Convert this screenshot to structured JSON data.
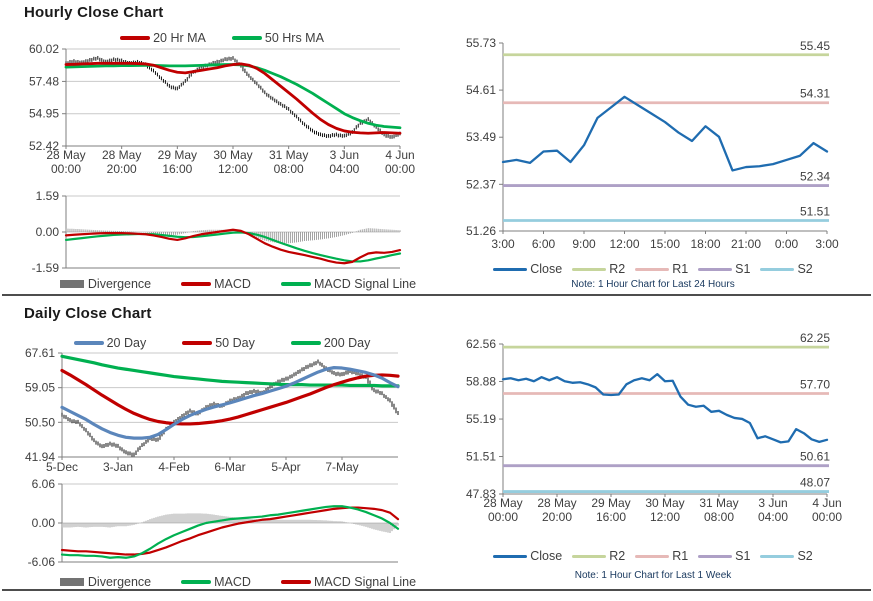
{
  "colors": {
    "candle": "#111111",
    "grid": "#c9c9c9",
    "axis": "#7f7f7f",
    "tick_text": "#3f3f3f",
    "note_text": "#17375d",
    "divergence_bar": "#8c8c8c"
  },
  "chart_data": [
    {
      "type": "candlestick",
      "title": "Hourly Close Chart",
      "ylim": [
        52.42,
        60.02
      ],
      "yticks": [
        "60.02",
        "57.48",
        "54.95",
        "52.42"
      ],
      "xtick_step": 7,
      "xticklabels": [
        [
          "28 May",
          "00:00"
        ],
        [
          "28 May",
          "20:00"
        ],
        [
          "29 May",
          "16:00"
        ],
        [
          "30 May",
          "12:00"
        ],
        [
          "31 May",
          "08:00"
        ],
        [
          "3 Jun",
          "04:00"
        ],
        [
          "4 Jun",
          "00:00"
        ]
      ],
      "close": [
        58.9,
        59.05,
        58.95,
        59.15,
        59.3,
        59.0,
        59.2,
        59.1,
        58.9,
        59.0,
        58.8,
        58.3,
        57.7,
        57.1,
        56.9,
        57.5,
        58.2,
        58.6,
        58.8,
        59.0,
        59.2,
        59.3,
        58.7,
        57.9,
        57.3,
        56.6,
        56.1,
        55.7,
        55.3,
        54.7,
        54.1,
        53.6,
        53.3,
        53.2,
        53.3,
        53.2,
        53.5,
        54.2,
        54.5,
        53.9,
        53.3,
        53.1,
        53.4
      ],
      "series": [
        {
          "name": "20 Hr MA",
          "color": "#c00000",
          "values": [
            58.8,
            58.82,
            58.85,
            58.87,
            58.9,
            58.9,
            58.9,
            58.9,
            58.9,
            58.88,
            58.85,
            58.75,
            58.55,
            58.35,
            58.2,
            58.15,
            58.25,
            58.35,
            58.45,
            58.55,
            58.7,
            58.8,
            58.85,
            58.75,
            58.5,
            58.1,
            57.6,
            57.1,
            56.6,
            56.1,
            55.55,
            55.0,
            54.5,
            54.1,
            53.8,
            53.6,
            53.5,
            53.45,
            53.42,
            53.45,
            53.48,
            53.45,
            53.42
          ]
        },
        {
          "name": "50 Hrs MA",
          "color": "#00b050",
          "values": [
            58.6,
            58.62,
            58.64,
            58.66,
            58.68,
            58.7,
            58.7,
            58.72,
            58.72,
            58.73,
            58.74,
            58.74,
            58.72,
            58.7,
            58.7,
            58.7,
            58.72,
            58.74,
            58.76,
            58.78,
            58.8,
            58.8,
            58.78,
            58.7,
            58.55,
            58.35,
            58.1,
            57.85,
            57.55,
            57.25,
            56.9,
            56.55,
            56.15,
            55.75,
            55.35,
            54.95,
            54.65,
            54.4,
            54.2,
            54.05,
            53.95,
            53.9,
            53.85
          ]
        }
      ]
    },
    {
      "type": "macd",
      "ylim": [
        -1.59,
        1.59
      ],
      "yticks": [
        "1.59",
        "0.00",
        "-1.59"
      ],
      "divergence": {
        "name": "Divergence",
        "color": "#737373",
        "values": [
          0.15,
          0.14,
          0.12,
          0.1,
          0.08,
          0.06,
          0.05,
          0.04,
          0.02,
          0.0,
          -0.02,
          -0.05,
          -0.1,
          -0.14,
          -0.12,
          -0.05,
          0.04,
          0.08,
          0.1,
          0.1,
          0.1,
          0.08,
          0.02,
          -0.1,
          -0.25,
          -0.38,
          -0.45,
          -0.5,
          -0.5,
          -0.46,
          -0.4,
          -0.37,
          -0.33,
          -0.28,
          -0.22,
          -0.14,
          -0.04,
          0.1,
          0.17,
          0.15,
          0.12,
          0.1,
          0.08
        ]
      },
      "series": [
        {
          "name": "MACD",
          "color": "#c00000",
          "values": [
            -0.15,
            -0.12,
            -0.1,
            -0.08,
            -0.06,
            -0.05,
            -0.05,
            -0.05,
            -0.06,
            -0.08,
            -0.1,
            -0.15,
            -0.22,
            -0.3,
            -0.35,
            -0.28,
            -0.18,
            -0.1,
            -0.05,
            0.0,
            0.05,
            0.1,
            0.05,
            -0.1,
            -0.3,
            -0.5,
            -0.65,
            -0.78,
            -0.88,
            -0.95,
            -1.02,
            -1.1,
            -1.18,
            -1.28,
            -1.35,
            -1.38,
            -1.32,
            -1.12,
            -0.95,
            -0.9,
            -0.92,
            -0.88,
            -0.8
          ]
        },
        {
          "name": "MACD Signal Line",
          "color": "#00b050",
          "values": [
            -0.35,
            -0.31,
            -0.27,
            -0.23,
            -0.19,
            -0.16,
            -0.13,
            -0.11,
            -0.1,
            -0.09,
            -0.09,
            -0.1,
            -0.13,
            -0.17,
            -0.21,
            -0.23,
            -0.22,
            -0.19,
            -0.15,
            -0.11,
            -0.07,
            -0.03,
            -0.02,
            -0.05,
            -0.12,
            -0.22,
            -0.35,
            -0.48,
            -0.6,
            -0.72,
            -0.83,
            -0.93,
            -1.02,
            -1.1,
            -1.18,
            -1.25,
            -1.3,
            -1.3,
            -1.25,
            -1.17,
            -1.1,
            -1.02,
            -0.95
          ]
        }
      ]
    },
    {
      "type": "line",
      "note": "Note: 1 Hour Chart for Last 24 Hours",
      "ylim": [
        51.26,
        55.73
      ],
      "yticks": [
        "55.73",
        "54.61",
        "53.49",
        "52.37",
        "51.26"
      ],
      "xtick_step": 3,
      "xticklabels": [
        "3:00",
        "6:00",
        "9:00",
        "12:00",
        "15:00",
        "18:00",
        "21:00",
        "0:00",
        "3:00"
      ],
      "series": [
        {
          "name": "Close",
          "color": "#1f6cb0",
          "values": [
            52.9,
            52.95,
            52.88,
            53.15,
            53.17,
            52.9,
            53.3,
            53.95,
            54.2,
            54.45,
            54.25,
            54.05,
            53.85,
            53.6,
            53.4,
            53.75,
            53.5,
            52.7,
            52.78,
            52.8,
            52.85,
            52.95,
            53.05,
            53.35,
            53.15
          ]
        }
      ],
      "levels": [
        {
          "name": "R2",
          "value": 55.45,
          "label": "55.45",
          "color": "#c6d59c"
        },
        {
          "name": "R1",
          "value": 54.31,
          "label": "54.31",
          "color": "#e6b9b7"
        },
        {
          "name": "S1",
          "value": 52.34,
          "label": "52.34",
          "color": "#aea0c6"
        },
        {
          "name": "S2",
          "value": 51.51,
          "label": "51.51",
          "color": "#95cdde"
        }
      ]
    },
    {
      "type": "candlestick",
      "title": "Daily Close Chart",
      "ylim": [
        41.94,
        67.61
      ],
      "yticks": [
        "67.61",
        "59.05",
        "50.50",
        "41.94"
      ],
      "xtick_step": 7,
      "xticklabels": [
        "5-Dec",
        "3-Jan",
        "4-Feb",
        "6-Mar",
        "5-Apr",
        "7-May"
      ],
      "close": [
        52.3,
        51.0,
        50.5,
        48.5,
        46.0,
        44.5,
        45.2,
        44.6,
        43.0,
        42.5,
        44.8,
        46.5,
        46.2,
        48.8,
        50.5,
        52.0,
        53.3,
        52.6,
        54.2,
        55.0,
        54.5,
        55.8,
        56.4,
        57.6,
        58.2,
        57.7,
        59.2,
        60.5,
        61.2,
        62.2,
        63.5,
        64.5,
        65.4,
        63.8,
        62.6,
        62.3,
        63.1,
        62.5,
        61.6,
        58.4,
        57.6,
        55.8,
        52.8
      ],
      "series": [
        {
          "name": "20 Day",
          "color": "#5b86bb",
          "values": [
            54.2,
            53.2,
            52.2,
            51.2,
            50.0,
            48.9,
            48.0,
            47.3,
            46.8,
            46.6,
            46.6,
            46.8,
            47.5,
            48.7,
            50.0,
            51.2,
            52.2,
            53.0,
            53.7,
            54.3,
            54.8,
            55.3,
            55.9,
            56.5,
            57.1,
            57.6,
            58.2,
            58.8,
            59.4,
            60.2,
            61.1,
            62.0,
            62.9,
            63.6,
            64.0,
            63.9,
            63.6,
            63.2,
            62.8,
            62.2,
            61.4,
            60.3,
            59.3
          ]
        },
        {
          "name": "50 Day",
          "color": "#c00000",
          "values": [
            63.3,
            62.2,
            61.0,
            59.8,
            58.5,
            57.2,
            56.0,
            54.8,
            53.7,
            52.7,
            51.9,
            51.2,
            50.7,
            50.4,
            50.2,
            50.1,
            50.1,
            50.2,
            50.4,
            50.6,
            50.9,
            51.3,
            51.8,
            52.4,
            53.0,
            53.6,
            54.2,
            54.8,
            55.4,
            56.1,
            56.8,
            57.5,
            58.3,
            59.1,
            59.8,
            60.4,
            61.0,
            61.5,
            61.9,
            62.1,
            62.2,
            62.1,
            61.9
          ]
        },
        {
          "name": "200 Day",
          "color": "#00b050",
          "values": [
            66.8,
            66.4,
            66.0,
            65.6,
            65.2,
            64.7,
            64.3,
            63.9,
            63.6,
            63.3,
            63.0,
            62.7,
            62.4,
            62.1,
            61.8,
            61.6,
            61.4,
            61.2,
            61.0,
            60.8,
            60.6,
            60.5,
            60.4,
            60.3,
            60.2,
            60.1,
            60.0,
            59.9,
            59.8,
            59.8,
            59.8,
            59.7,
            59.7,
            59.7,
            59.7,
            59.7,
            59.6,
            59.6,
            59.6,
            59.6,
            59.5,
            59.5,
            59.5
          ]
        }
      ]
    },
    {
      "type": "macd",
      "ylim": [
        -6.06,
        6.06
      ],
      "yticks": [
        "6.06",
        "0.00",
        "-6.06"
      ],
      "divergence": {
        "name": "Divergence",
        "color": "#737373",
        "values": [
          -0.7,
          -0.7,
          -0.6,
          -0.7,
          -0.6,
          -0.6,
          -0.7,
          -0.5,
          -0.5,
          -0.3,
          0.1,
          0.6,
          1.0,
          1.3,
          1.45,
          1.45,
          1.5,
          1.5,
          1.45,
          1.3,
          1.1,
          0.95,
          0.85,
          0.7,
          0.6,
          0.5,
          0.55,
          0.5,
          0.5,
          0.5,
          0.5,
          0.5,
          0.45,
          0.4,
          0.3,
          0.25,
          0.0,
          -0.3,
          -0.6,
          -1.0,
          -1.3,
          -1.55,
          -0.4
        ]
      },
      "series": [
        {
          "name": "MACD",
          "color": "#00b050",
          "values": [
            -4.9,
            -5.0,
            -5.0,
            -5.1,
            -5.1,
            -5.2,
            -5.4,
            -5.3,
            -5.4,
            -5.2,
            -4.7,
            -4.0,
            -3.2,
            -2.5,
            -1.9,
            -1.4,
            -0.9,
            -0.4,
            0.0,
            0.2,
            0.4,
            0.6,
            0.7,
            0.8,
            0.9,
            1.0,
            1.2,
            1.3,
            1.5,
            1.7,
            1.9,
            2.1,
            2.3,
            2.5,
            2.6,
            2.6,
            2.4,
            2.1,
            1.7,
            1.2,
            0.7,
            0.0,
            -0.9
          ]
        },
        {
          "name": "MACD Signal Line",
          "color": "#c00000",
          "values": [
            -4.2,
            -4.3,
            -4.4,
            -4.4,
            -4.5,
            -4.6,
            -4.7,
            -4.8,
            -4.9,
            -4.9,
            -4.8,
            -4.6,
            -4.2,
            -3.8,
            -3.3,
            -2.8,
            -2.4,
            -1.9,
            -1.5,
            -1.1,
            -0.7,
            -0.4,
            -0.1,
            0.1,
            0.3,
            0.5,
            0.6,
            0.8,
            1.0,
            1.2,
            1.4,
            1.6,
            1.8,
            2.0,
            2.2,
            2.3,
            2.4,
            2.4,
            2.3,
            2.2,
            2.0,
            1.6,
            0.6
          ]
        }
      ]
    },
    {
      "type": "line",
      "note": "Note: 1 Hour Chart for Last 1 Week",
      "ylim": [
        47.83,
        62.56
      ],
      "yticks": [
        "62.56",
        "58.88",
        "55.19",
        "51.51",
        "47.83"
      ],
      "xtick_step": 7,
      "xticklabels": [
        [
          "28 May",
          "00:00"
        ],
        [
          "28 May",
          "20:00"
        ],
        [
          "29 May",
          "16:00"
        ],
        [
          "30 May",
          "12:00"
        ],
        [
          "31 May",
          "08:00"
        ],
        [
          "3 Jun",
          "04:00"
        ],
        [
          "4 Jun",
          "00:00"
        ]
      ],
      "series": [
        {
          "name": "Close",
          "color": "#1f6cb0",
          "values": [
            59.1,
            59.2,
            59.0,
            59.15,
            58.9,
            59.3,
            59.0,
            59.3,
            58.9,
            58.75,
            58.8,
            58.6,
            58.3,
            57.6,
            57.55,
            57.6,
            58.6,
            59.0,
            59.2,
            59.0,
            59.6,
            58.9,
            58.95,
            57.4,
            56.6,
            56.4,
            56.5,
            55.9,
            56.0,
            55.6,
            55.3,
            55.2,
            54.8,
            53.3,
            53.5,
            53.2,
            52.9,
            53.0,
            54.2,
            53.8,
            53.2,
            52.95,
            53.15
          ]
        }
      ],
      "levels": [
        {
          "name": "R2",
          "value": 62.25,
          "label": "62.25",
          "color": "#c6d59c"
        },
        {
          "name": "R1",
          "value": 57.7,
          "label": "57.70",
          "color": "#e6b9b7"
        },
        {
          "name": "S1",
          "value": 50.61,
          "label": "50.61",
          "color": "#aea0c6"
        },
        {
          "name": "S2",
          "value": 48.07,
          "label": "48.07",
          "color": "#95cdde"
        }
      ]
    }
  ]
}
